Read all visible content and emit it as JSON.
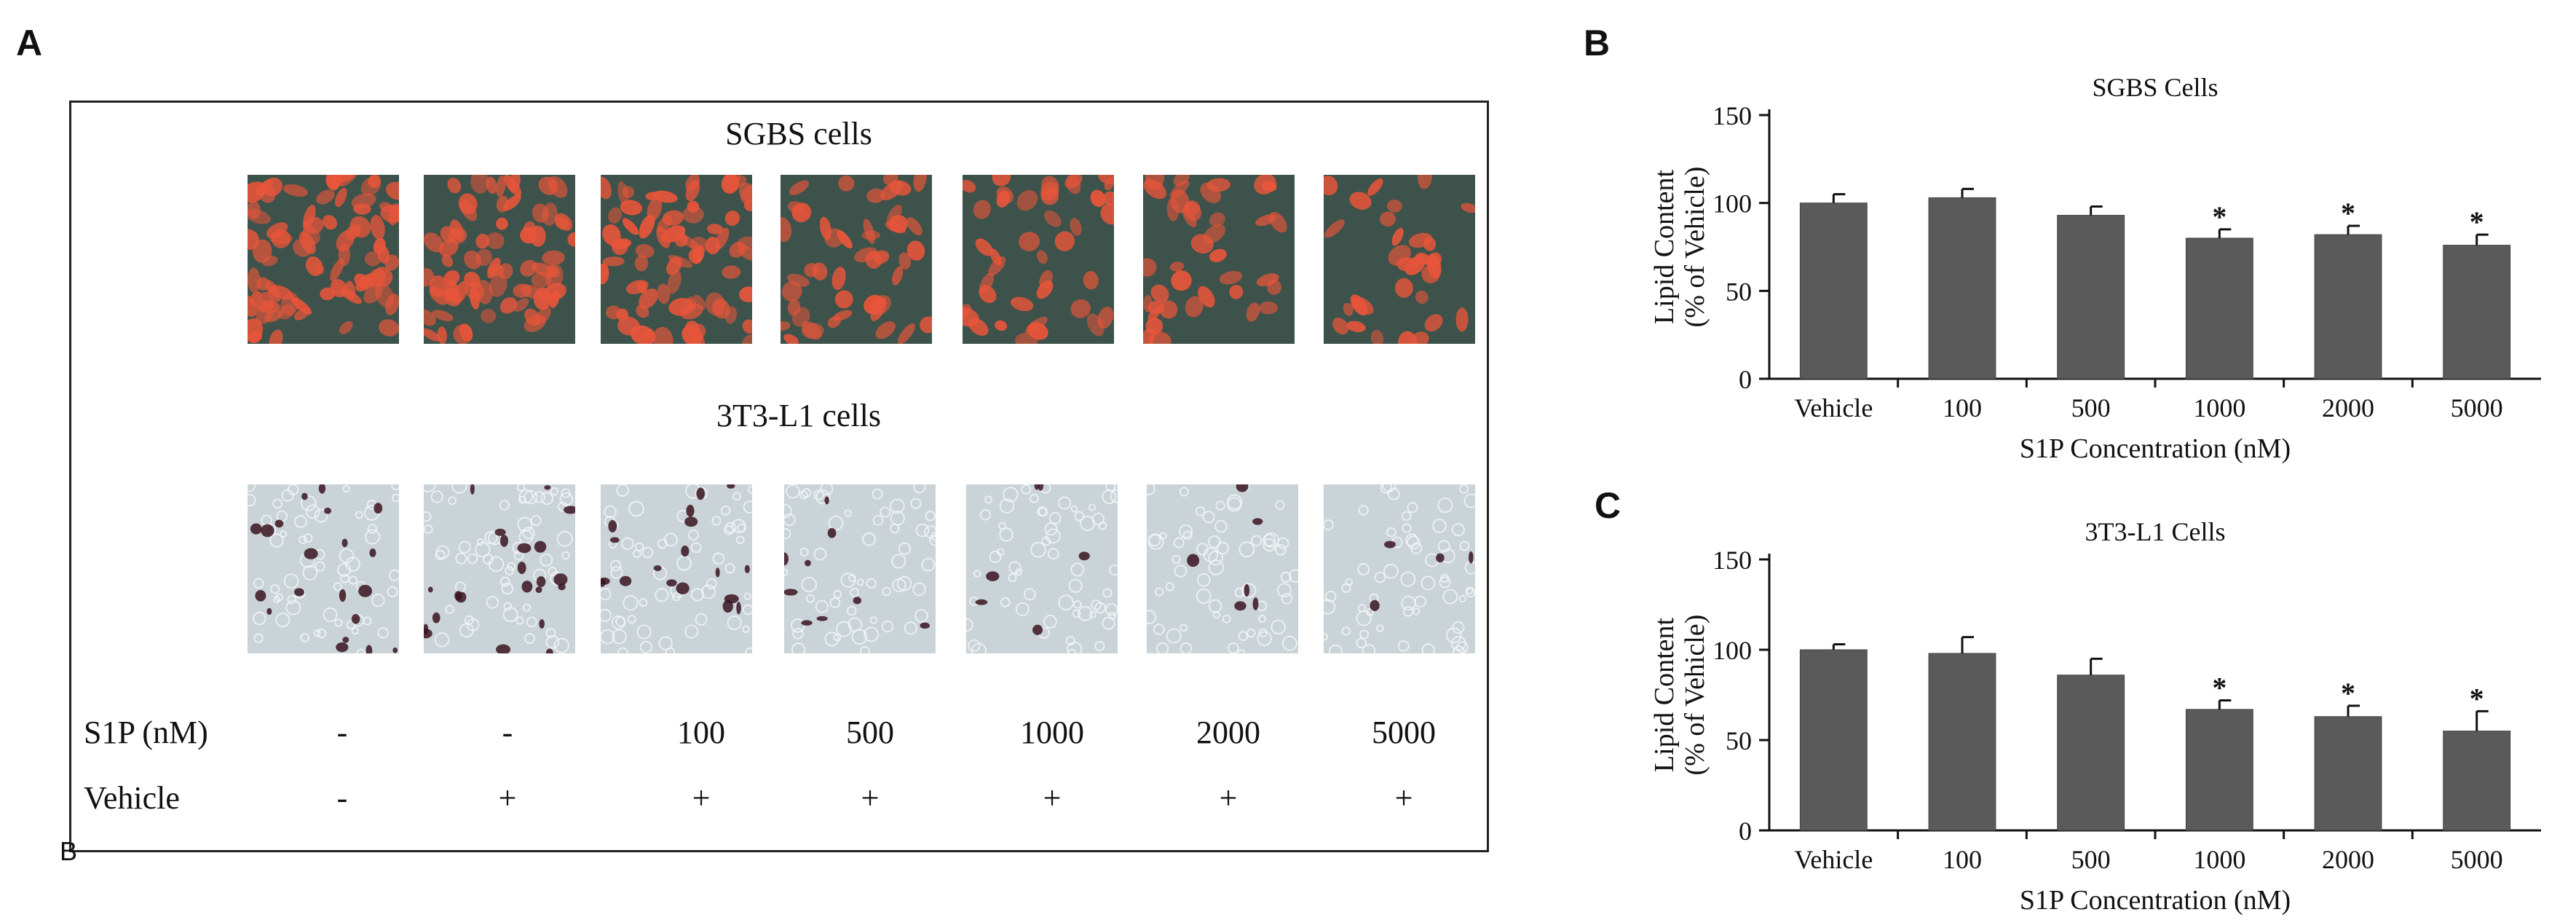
{
  "panels": {
    "a": "A",
    "b": "B",
    "c": "C",
    "stray_mark": "B"
  },
  "panel_a": {
    "row1_title": "SGBS cells",
    "row2_title": "3T3-L1 cells",
    "s1p_label": "S1P (nM)",
    "vehicle_label": "Vehicle",
    "s1p_values": [
      "-",
      "-",
      "100",
      "500",
      "1000",
      "2000",
      "5000"
    ],
    "vehicle_values": [
      "-",
      "+",
      "+",
      "+",
      "+",
      "+",
      "+"
    ],
    "colors": {
      "sgbs_background": "#3c524a",
      "sgbs_cell": "#e8553a",
      "l1_background": "#c9d3d8",
      "l1_cell_outline": "#f4f6f7",
      "l1_lipid": "#3a1320"
    },
    "sgbs_cell_counts": [
      75,
      70,
      72,
      45,
      40,
      38,
      30
    ],
    "l1_lipid_counts": [
      20,
      22,
      18,
      9,
      6,
      6,
      4
    ]
  },
  "chart_data": [
    {
      "type": "bar",
      "title": "SGBS Cells",
      "xlabel": "S1P Concentration (nM)",
      "ylabel": "Lipid Content\n(% of Vehicle)",
      "ylabel_lines": [
        "Lipid Content",
        "(% of Vehicle)"
      ],
      "categories": [
        "Vehicle",
        "100",
        "500",
        "1000",
        "2000",
        "5000"
      ],
      "values": [
        100,
        103,
        93,
        80,
        82,
        76
      ],
      "errors": [
        5,
        5,
        5,
        5,
        5,
        6
      ],
      "significance": [
        "",
        "",
        "",
        "*",
        "*",
        "*"
      ],
      "ylim": [
        0,
        150
      ],
      "yticks": [
        0,
        50,
        100,
        150
      ],
      "bar_color": "#5a5a5a",
      "grid": false
    },
    {
      "type": "bar",
      "title": "3T3-L1  Cells",
      "xlabel": "S1P Concentration (nM)",
      "ylabel": "Lipid Content\n(% of Vehicle)",
      "ylabel_lines": [
        "Lipid Content",
        "(% of Vehicle)"
      ],
      "categories": [
        "Vehicle",
        "100",
        "500",
        "1000",
        "2000",
        "5000"
      ],
      "values": [
        100,
        98,
        86,
        67,
        63,
        55
      ],
      "errors": [
        3,
        9,
        9,
        5,
        6,
        11
      ],
      "significance": [
        "",
        "",
        "",
        "*",
        "*",
        "*"
      ],
      "ylim": [
        0,
        150
      ],
      "yticks": [
        0,
        50,
        100,
        150
      ],
      "bar_color": "#5a5a5a",
      "grid": false
    }
  ]
}
